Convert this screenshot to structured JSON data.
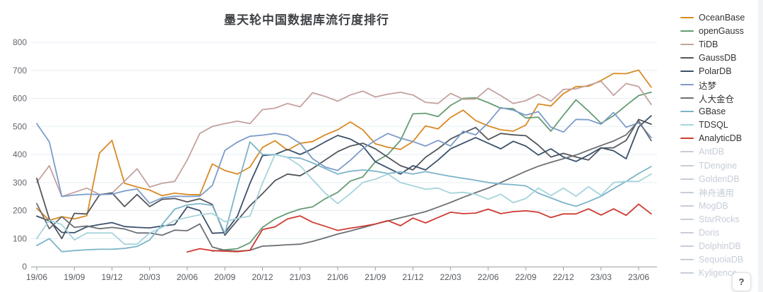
{
  "chart_data": {
    "type": "line",
    "title": "墨天轮中国数据库流行度排行",
    "xlabel": "",
    "ylabel": "",
    "ylim": [
      0,
      800
    ],
    "y_step": 100,
    "grid": true,
    "legend_position": "right",
    "x_tick_every": 3,
    "x": [
      "19/06",
      "19/07",
      "19/08",
      "19/09",
      "19/10",
      "19/11",
      "19/12",
      "20/01",
      "20/02",
      "20/03",
      "20/04",
      "20/05",
      "20/06",
      "20/07",
      "20/08",
      "20/09",
      "20/10",
      "20/11",
      "20/12",
      "21/01",
      "21/02",
      "21/03",
      "21/04",
      "21/05",
      "21/06",
      "21/07",
      "21/08",
      "21/09",
      "21/10",
      "21/11",
      "21/12",
      "22/01",
      "22/02",
      "22/03",
      "22/04",
      "22/05",
      "22/06",
      "22/07",
      "22/08",
      "22/09",
      "22/10",
      "22/11",
      "22/12",
      "23/01",
      "23/02",
      "23/03",
      "23/04",
      "23/05",
      "23/06",
      "23/07"
    ],
    "series": [
      {
        "name": "OceanBase",
        "color": "#d98a23",
        "enabled": true,
        "values": [
          208,
          165,
          178,
          170,
          182,
          405,
          450,
          297,
          284,
          273,
          253,
          262,
          257,
          256,
          366,
          343,
          330,
          355,
          425,
          449,
          415,
          440,
          446,
          470,
          488,
          516,
          488,
          438,
          426,
          418,
          446,
          502,
          491,
          532,
          558,
          521,
          502,
          488,
          483,
          505,
          580,
          573,
          617,
          642,
          643,
          664,
          689,
          688,
          701,
          640
        ]
      },
      {
        "name": "openGauss",
        "color": "#649c74",
        "enabled": true,
        "values": [
          null,
          null,
          null,
          null,
          null,
          null,
          null,
          null,
          null,
          null,
          null,
          null,
          null,
          null,
          55,
          60,
          64,
          85,
          140,
          170,
          190,
          205,
          213,
          242,
          265,
          305,
          320,
          374,
          400,
          450,
          545,
          547,
          535,
          575,
          600,
          602,
          585,
          565,
          563,
          530,
          533,
          483,
          540,
          595,
          555,
          511,
          538,
          575,
          610,
          622
        ]
      },
      {
        "name": "TiDB",
        "color": "#c4a29f",
        "enabled": true,
        "values": [
          300,
          360,
          250,
          265,
          280,
          257,
          262,
          305,
          349,
          284,
          297,
          304,
          380,
          475,
          500,
          510,
          519,
          510,
          560,
          565,
          582,
          570,
          620,
          607,
          590,
          612,
          626,
          605,
          615,
          622,
          612,
          586,
          582,
          618,
          597,
          598,
          636,
          610,
          582,
          592,
          614,
          590,
          632,
          634,
          647,
          661,
          611,
          653,
          642,
          578
        ]
      },
      {
        "name": "GaussDB",
        "color": "#53565c",
        "enabled": true,
        "values": [
          315,
          170,
          100,
          190,
          188,
          256,
          263,
          214,
          257,
          214,
          240,
          243,
          231,
          242,
          222,
          112,
          165,
          217,
          260,
          307,
          330,
          324,
          350,
          380,
          410,
          430,
          440,
          420,
          390,
          360,
          345,
          390,
          420,
          455,
          477,
          496,
          453,
          475,
          470,
          467,
          433,
          391,
          404,
          391,
          380,
          423,
          424,
          450,
          525,
          508
        ]
      },
      {
        "name": "PolarDB",
        "color": "#3b516c",
        "enabled": true,
        "values": [
          180,
          163,
          122,
          121,
          142,
          150,
          157,
          143,
          140,
          138,
          145,
          150,
          213,
          200,
          119,
          121,
          180,
          297,
          396,
          400,
          418,
          400,
          420,
          445,
          468,
          455,
          430,
          374,
          352,
          330,
          360,
          345,
          380,
          420,
          440,
          460,
          440,
          420,
          447,
          430,
          398,
          420,
          391,
          375,
          398,
          424,
          413,
          385,
          498,
          538
        ]
      },
      {
        "name": "达梦",
        "color": "#7d9cca",
        "enabled": true,
        "values": [
          510,
          445,
          250,
          255,
          258,
          257,
          258,
          270,
          277,
          226,
          245,
          251,
          250,
          251,
          289,
          414,
          444,
          465,
          469,
          475,
          468,
          440,
          385,
          355,
          343,
          379,
          421,
          450,
          475,
          458,
          446,
          430,
          450,
          430,
          483,
          470,
          513,
          567,
          558,
          540,
          553,
          497,
          480,
          525,
          524,
          508,
          550,
          497,
          513,
          460
        ]
      },
      {
        "name": "人大金仓",
        "color": "#6c6f74",
        "enabled": true,
        "values": [
          225,
          135,
          178,
          140,
          145,
          135,
          140,
          134,
          120,
          120,
          112,
          130,
          128,
          152,
          70,
          58,
          55,
          58,
          73,
          75,
          78,
          80,
          90,
          103,
          116,
          127,
          139,
          152,
          163,
          174,
          185,
          196,
          212,
          229,
          247,
          264,
          280,
          300,
          320,
          340,
          358,
          372,
          385,
          398,
          415,
          432,
          448,
          470,
          520,
          449
        ]
      },
      {
        "name": "GBase",
        "color": "#7cb4c9",
        "enabled": true,
        "values": [
          75,
          100,
          53,
          57,
          60,
          62,
          62,
          65,
          72,
          95,
          150,
          205,
          220,
          225,
          218,
          118,
          288,
          445,
          400,
          399,
          390,
          387,
          370,
          350,
          330,
          340,
          345,
          340,
          332,
          338,
          330,
          339,
          330,
          322,
          315,
          308,
          300,
          295,
          292,
          288,
          262,
          245,
          228,
          215,
          232,
          251,
          278,
          304,
          332,
          357
        ]
      },
      {
        "name": "TDSQL",
        "color": "#a5d4db",
        "enabled": true,
        "values": [
          100,
          165,
          150,
          95,
          120,
          120,
          120,
          80,
          80,
          120,
          140,
          165,
          175,
          185,
          190,
          160,
          172,
          180,
          297,
          400,
          389,
          360,
          310,
          262,
          225,
          260,
          300,
          312,
          330,
          300,
          288,
          276,
          280,
          262,
          265,
          258,
          240,
          258,
          228,
          243,
          280,
          253,
          280,
          251,
          285,
          254,
          300,
          304,
          304,
          330
        ]
      },
      {
        "name": "AnalyticDB",
        "color": "#cf3a31",
        "enabled": true,
        "values": [
          null,
          null,
          null,
          null,
          null,
          null,
          null,
          null,
          null,
          null,
          null,
          null,
          52,
          64,
          57,
          55,
          53,
          58,
          132,
          142,
          170,
          181,
          158,
          144,
          129,
          137,
          144,
          152,
          164,
          146,
          173,
          156,
          175,
          194,
          189,
          191,
          205,
          189,
          196,
          199,
          194,
          175,
          188,
          188,
          206,
          184,
          206,
          183,
          223,
          188
        ]
      },
      {
        "name": "AntDB",
        "color": "#c3c9d3",
        "enabled": false,
        "values": null
      },
      {
        "name": "TDengine",
        "color": "#c3c9d3",
        "enabled": false,
        "values": null
      },
      {
        "name": "GoldenDB",
        "color": "#c3c9d3",
        "enabled": false,
        "values": null
      },
      {
        "name": "神舟通用",
        "color": "#c3c9d3",
        "enabled": false,
        "values": null
      },
      {
        "name": "MogDB",
        "color": "#c3c9d3",
        "enabled": false,
        "values": null
      },
      {
        "name": "StarRocks",
        "color": "#c3c9d3",
        "enabled": false,
        "values": null
      },
      {
        "name": "Doris",
        "color": "#c3c9d3",
        "enabled": false,
        "values": null
      },
      {
        "name": "DolphinDB",
        "color": "#c3c9d3",
        "enabled": false,
        "values": null
      },
      {
        "name": "SequoiaDB",
        "color": "#c3c9d3",
        "enabled": false,
        "values": null
      },
      {
        "name": "Kyligence",
        "color": "#c3c9d3",
        "enabled": false,
        "values": null
      }
    ],
    "y_tick_labels": [
      "0",
      "100",
      "200",
      "300",
      "400",
      "500",
      "600",
      "700",
      "800"
    ],
    "x_tick_labels": [
      "19/06",
      "19/09",
      "19/12",
      "20/03",
      "20/06",
      "20/09",
      "20/12",
      "21/03",
      "21/06",
      "21/09",
      "21/12",
      "22/03",
      "22/06",
      "22/09",
      "22/12",
      "23/03",
      "23/06"
    ]
  },
  "style": {
    "grid_color": "#e6edf4",
    "axis_line_color": "#9aa0a6",
    "y_label_color": "#63676d",
    "x_label_color": "#55585e",
    "title_color": "#3f4246",
    "legend_active_color": "#333333",
    "legend_disabled_color": "#c7cdd8"
  },
  "ui": {
    "help_label": "?"
  }
}
